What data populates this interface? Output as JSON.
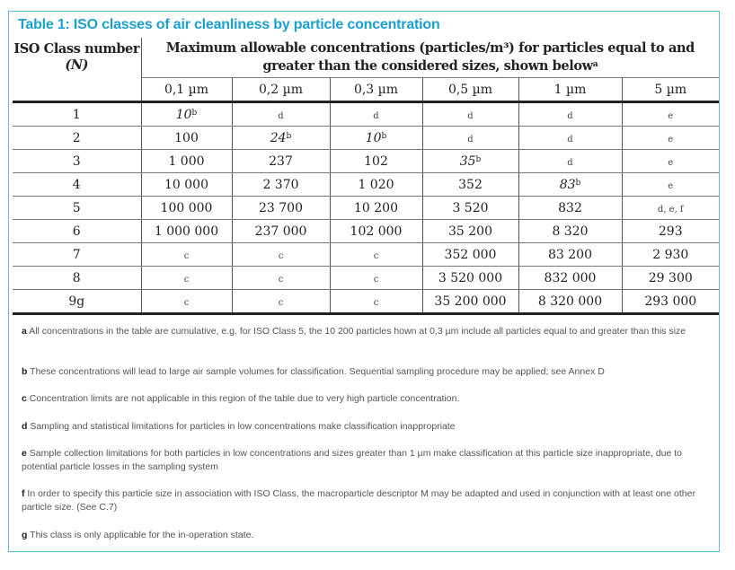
{
  "title": "Table 1: ISO classes of air cleanliness by particle concentration",
  "header": {
    "class_col": "ISO Class number",
    "class_col_sub": "(N)",
    "conc_col": "Maximum allowable concentrations (particles/m³) for particles equal to and greater than the considered sizes, shown below",
    "conc_col_sup": "a",
    "sizes": [
      "0,1 µm",
      "0,2 µm",
      "0,3 µm",
      "0,5 µm",
      "1 µm",
      "5 µm"
    ]
  },
  "rows": [
    {
      "class": "1",
      "cells": [
        {
          "v": "10",
          "sup": "b",
          "italic": true
        },
        {
          "v": "d",
          "note": true
        },
        {
          "v": "d",
          "note": true
        },
        {
          "v": "d",
          "note": true
        },
        {
          "v": "d",
          "note": true
        },
        {
          "v": "e",
          "note": true
        }
      ]
    },
    {
      "class": "2",
      "cells": [
        {
          "v": "100"
        },
        {
          "v": "24",
          "sup": "b",
          "italic": true
        },
        {
          "v": "10",
          "sup": "b",
          "italic": true
        },
        {
          "v": "d",
          "note": true
        },
        {
          "v": "d",
          "note": true
        },
        {
          "v": "e",
          "note": true
        }
      ]
    },
    {
      "class": "3",
      "cells": [
        {
          "v": "1 000"
        },
        {
          "v": "237"
        },
        {
          "v": "102"
        },
        {
          "v": "35",
          "sup": "b",
          "italic": true
        },
        {
          "v": "d",
          "note": true
        },
        {
          "v": "e",
          "note": true
        }
      ]
    },
    {
      "class": "4",
      "cells": [
        {
          "v": "10 000"
        },
        {
          "v": "2 370"
        },
        {
          "v": "1 020"
        },
        {
          "v": "352"
        },
        {
          "v": "83",
          "sup": "b",
          "italic": true
        },
        {
          "v": "e",
          "note": true
        }
      ]
    },
    {
      "class": "5",
      "cells": [
        {
          "v": "100 000"
        },
        {
          "v": "23 700"
        },
        {
          "v": "10 200"
        },
        {
          "v": "3 520"
        },
        {
          "v": "832"
        },
        {
          "v": "d, e, f",
          "note": true
        }
      ]
    },
    {
      "class": "6",
      "cells": [
        {
          "v": "1 000 000"
        },
        {
          "v": "237 000"
        },
        {
          "v": "102 000"
        },
        {
          "v": "35 200"
        },
        {
          "v": "8 320"
        },
        {
          "v": "293"
        }
      ]
    },
    {
      "class": "7",
      "cells": [
        {
          "v": "c",
          "note": true
        },
        {
          "v": "c",
          "note": true
        },
        {
          "v": "c",
          "note": true
        },
        {
          "v": "352 000"
        },
        {
          "v": "83 200"
        },
        {
          "v": "2 930"
        }
      ]
    },
    {
      "class": "8",
      "cells": [
        {
          "v": "c",
          "note": true
        },
        {
          "v": "c",
          "note": true
        },
        {
          "v": "c",
          "note": true
        },
        {
          "v": "3 520 000"
        },
        {
          "v": "832 000"
        },
        {
          "v": "29 300"
        }
      ]
    },
    {
      "class": "9g",
      "cells": [
        {
          "v": "c",
          "note": true
        },
        {
          "v": "c",
          "note": true
        },
        {
          "v": "c",
          "note": true
        },
        {
          "v": "35 200 000"
        },
        {
          "v": "8 320 000"
        },
        {
          "v": "293 000"
        }
      ]
    }
  ],
  "footnotes": [
    {
      "key": "a",
      "text": "All concentrations in the table are cumulative, e.g. for ISO Class 5, the 10 200 particles hown at 0,3 µm include all particles equal to and greater than this size"
    },
    {
      "key": "b",
      "text": "These concentrations will lead to large air sample volumes for classification. Sequential sampling procedure may be applied; see Annex D"
    },
    {
      "key": "c",
      "text": "Concentration limits are not applicable in this region of the table due to very high particle concentration."
    },
    {
      "key": "d",
      "text": "Sampling and statistical limitations for particles in low concentrations make classification inappropriate"
    },
    {
      "key": "e",
      "text": "Sample collection limitations for both particles in low concentrations and sizes  greater than 1 µm make classification at this particle size inappropriate, due to potential particle losses in the sampling system"
    },
    {
      "key": "f",
      "text": "In order to specify this particle size in association with ISO Class, the macroparticle descriptor M may be adapted and used in conjunction with at least one other particle size. (See C.7)"
    },
    {
      "key": "g",
      "text": "This class is only applicable for the in-operation state."
    }
  ]
}
